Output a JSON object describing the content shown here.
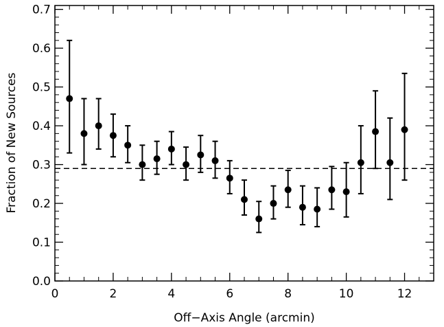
{
  "chart_data": {
    "type": "scatter",
    "xlabel": "Off−Axis Angle (arcmin)",
    "ylabel": "Fraction of New Sources",
    "xlim": [
      0,
      13
    ],
    "ylim": [
      0,
      0.71
    ],
    "x_ticks": [
      0,
      2,
      4,
      6,
      8,
      10,
      12
    ],
    "x_tick_labels": [
      "0",
      "2",
      "4",
      "6",
      "8",
      "10",
      "12"
    ],
    "y_ticks": [
      0.0,
      0.1,
      0.2,
      0.3,
      0.4,
      0.5,
      0.6,
      0.7
    ],
    "y_tick_labels": [
      "0.0",
      "0.1",
      "0.2",
      "0.3",
      "0.4",
      "0.5",
      "0.6",
      "0.7"
    ],
    "grid": false,
    "reference_line": {
      "y": 0.29,
      "style": "dashed"
    },
    "series": [
      {
        "marker": "filled-circle",
        "points": [
          {
            "x": 0.5,
            "y": 0.47,
            "y_low": 0.33,
            "y_high": 0.62
          },
          {
            "x": 1.0,
            "y": 0.38,
            "y_low": 0.3,
            "y_high": 0.47
          },
          {
            "x": 1.5,
            "y": 0.4,
            "y_low": 0.34,
            "y_high": 0.47
          },
          {
            "x": 2.0,
            "y": 0.375,
            "y_low": 0.32,
            "y_high": 0.43
          },
          {
            "x": 2.5,
            "y": 0.35,
            "y_low": 0.305,
            "y_high": 0.4
          },
          {
            "x": 3.0,
            "y": 0.3,
            "y_low": 0.26,
            "y_high": 0.35
          },
          {
            "x": 3.5,
            "y": 0.315,
            "y_low": 0.275,
            "y_high": 0.36
          },
          {
            "x": 4.0,
            "y": 0.34,
            "y_low": 0.3,
            "y_high": 0.385
          },
          {
            "x": 4.5,
            "y": 0.3,
            "y_low": 0.26,
            "y_high": 0.345
          },
          {
            "x": 5.0,
            "y": 0.325,
            "y_low": 0.28,
            "y_high": 0.375
          },
          {
            "x": 5.5,
            "y": 0.31,
            "y_low": 0.265,
            "y_high": 0.36
          },
          {
            "x": 6.0,
            "y": 0.265,
            "y_low": 0.225,
            "y_high": 0.31
          },
          {
            "x": 6.5,
            "y": 0.21,
            "y_low": 0.17,
            "y_high": 0.26
          },
          {
            "x": 7.0,
            "y": 0.16,
            "y_low": 0.125,
            "y_high": 0.205
          },
          {
            "x": 7.5,
            "y": 0.2,
            "y_low": 0.16,
            "y_high": 0.245
          },
          {
            "x": 8.0,
            "y": 0.235,
            "y_low": 0.19,
            "y_high": 0.285
          },
          {
            "x": 8.5,
            "y": 0.19,
            "y_low": 0.145,
            "y_high": 0.245
          },
          {
            "x": 9.0,
            "y": 0.185,
            "y_low": 0.14,
            "y_high": 0.24
          },
          {
            "x": 9.5,
            "y": 0.235,
            "y_low": 0.185,
            "y_high": 0.295
          },
          {
            "x": 10.0,
            "y": 0.23,
            "y_low": 0.165,
            "y_high": 0.305
          },
          {
            "x": 10.5,
            "y": 0.305,
            "y_low": 0.225,
            "y_high": 0.4
          },
          {
            "x": 11.0,
            "y": 0.385,
            "y_low": 0.29,
            "y_high": 0.49
          },
          {
            "x": 11.5,
            "y": 0.305,
            "y_low": 0.21,
            "y_high": 0.42
          },
          {
            "x": 12.0,
            "y": 0.39,
            "y_low": 0.26,
            "y_high": 0.535
          }
        ]
      }
    ]
  }
}
